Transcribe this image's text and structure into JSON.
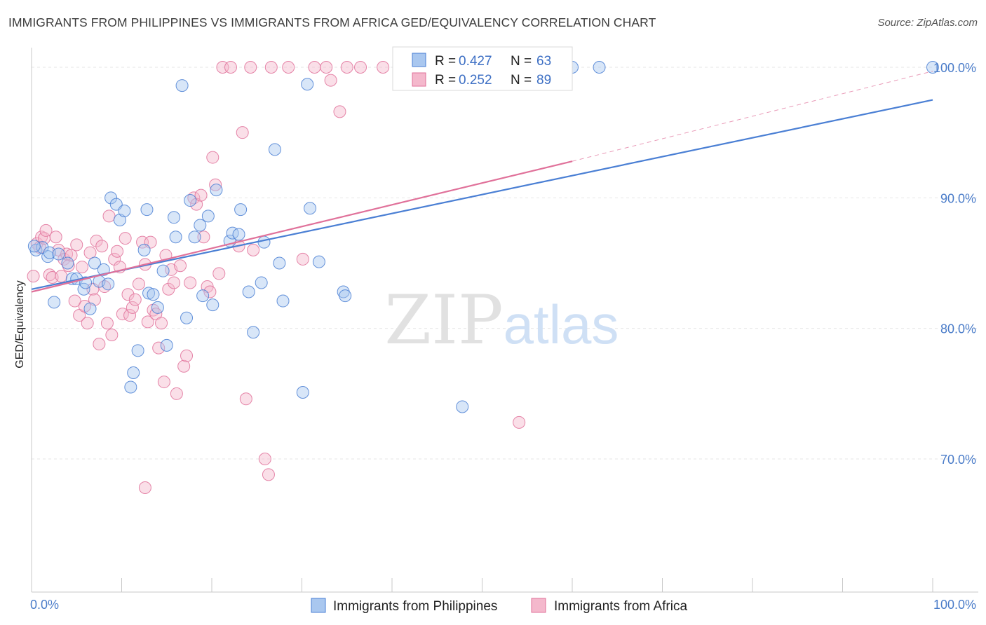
{
  "header": {
    "title": "IMMIGRANTS FROM PHILIPPINES VS IMMIGRANTS FROM AFRICA GED/EQUIVALENCY CORRELATION CHART",
    "source": "Source: ZipAtlas.com"
  },
  "watermark": {
    "zip": "ZIP",
    "atlas": "atlas"
  },
  "colors": {
    "blue": "#4a7fd4",
    "blue_fill": "#a9c7ef",
    "pink": "#e0719a",
    "pink_fill": "#f4b8cc",
    "tick_label": "#4a7cc9"
  },
  "legend": {
    "row1": {
      "r_label": "R = ",
      "r_value": "0.427",
      "n_label": "N = ",
      "n_value": "63"
    },
    "row2": {
      "r_label": "R = ",
      "r_value": "0.252",
      "n_label": "N = ",
      "n_value": "89"
    }
  },
  "chart_data": {
    "type": "scatter",
    "title": "IMMIGRANTS FROM PHILIPPINES VS IMMIGRANTS FROM AFRICA GED/EQUIVALENCY CORRELATION CHART",
    "xlabel": "",
    "ylabel": "GED/Equivalency",
    "xlim": [
      0,
      100
    ],
    "ylim": [
      60,
      101.5
    ],
    "x_tick_labels": [
      "0.0%",
      "100.0%"
    ],
    "y_ticks": [
      70,
      80,
      90,
      100
    ],
    "y_tick_labels": [
      "70.0%",
      "80.0%",
      "90.0%",
      "100.0%"
    ],
    "grid": true,
    "legend_position": "top-center",
    "series": [
      {
        "name": "Immigrants from Philippines",
        "color": "#4a7fd4",
        "trend": {
          "x": [
            0,
            100
          ],
          "y": [
            83.0,
            97.5
          ]
        },
        "points": [
          [
            0.5,
            86.0
          ],
          [
            1.2,
            86.2
          ],
          [
            1.8,
            85.5
          ],
          [
            2.0,
            85.8
          ],
          [
            2.5,
            82.0
          ],
          [
            3.0,
            85.7
          ],
          [
            4.0,
            85.0
          ],
          [
            4.5,
            83.8
          ],
          [
            5.0,
            83.8
          ],
          [
            5.8,
            83.0
          ],
          [
            6.0,
            83.5
          ],
          [
            6.5,
            81.5
          ],
          [
            7.0,
            85.0
          ],
          [
            7.5,
            83.6
          ],
          [
            8.0,
            84.5
          ],
          [
            8.5,
            83.4
          ],
          [
            8.8,
            90.0
          ],
          [
            9.4,
            89.5
          ],
          [
            9.8,
            88.3
          ],
          [
            10.3,
            89.0
          ],
          [
            11.0,
            75.5
          ],
          [
            11.3,
            76.6
          ],
          [
            11.8,
            78.3
          ],
          [
            12.5,
            86.0
          ],
          [
            12.8,
            89.1
          ],
          [
            13.0,
            82.7
          ],
          [
            13.5,
            82.6
          ],
          [
            14.0,
            81.6
          ],
          [
            14.6,
            84.4
          ],
          [
            15.0,
            78.7
          ],
          [
            15.8,
            88.5
          ],
          [
            16.0,
            87.0
          ],
          [
            16.7,
            98.6
          ],
          [
            17.2,
            80.8
          ],
          [
            17.6,
            89.8
          ],
          [
            18.1,
            87.0
          ],
          [
            18.7,
            87.9
          ],
          [
            19.0,
            82.5
          ],
          [
            19.6,
            88.6
          ],
          [
            20.1,
            81.8
          ],
          [
            20.5,
            90.6
          ],
          [
            22.0,
            86.7
          ],
          [
            22.3,
            87.3
          ],
          [
            23.0,
            87.2
          ],
          [
            23.2,
            89.1
          ],
          [
            24.1,
            82.8
          ],
          [
            24.6,
            79.7
          ],
          [
            25.5,
            83.5
          ],
          [
            25.8,
            86.6
          ],
          [
            27.0,
            93.7
          ],
          [
            27.5,
            85.0
          ],
          [
            27.9,
            82.1
          ],
          [
            30.1,
            75.1
          ],
          [
            30.6,
            98.7
          ],
          [
            30.9,
            89.2
          ],
          [
            31.9,
            85.1
          ],
          [
            34.6,
            82.8
          ],
          [
            34.8,
            82.5
          ],
          [
            47.8,
            74.0
          ],
          [
            60.0,
            100.0
          ],
          [
            63.0,
            100.0
          ],
          [
            100.0,
            100.0
          ],
          [
            0.3,
            86.3
          ]
        ]
      },
      {
        "name": "Immigrants from Africa",
        "color": "#e0719a",
        "trend": {
          "x": [
            0,
            60
          ],
          "y": [
            82.8,
            92.8
          ]
        },
        "trend_extension": {
          "x": [
            60,
            100
          ],
          "y": [
            92.8,
            99.7
          ]
        },
        "points": [
          [
            0.2,
            84.0
          ],
          [
            0.6,
            86.5
          ],
          [
            0.9,
            86.2
          ],
          [
            1.1,
            87.0
          ],
          [
            1.4,
            86.9
          ],
          [
            1.6,
            87.5
          ],
          [
            2.0,
            84.1
          ],
          [
            2.3,
            83.9
          ],
          [
            2.7,
            87.0
          ],
          [
            3.0,
            86.0
          ],
          [
            3.3,
            84.0
          ],
          [
            3.6,
            85.3
          ],
          [
            3.9,
            85.7
          ],
          [
            4.1,
            84.8
          ],
          [
            4.4,
            85.6
          ],
          [
            4.8,
            82.1
          ],
          [
            5.0,
            86.4
          ],
          [
            5.3,
            81.0
          ],
          [
            5.6,
            84.7
          ],
          [
            5.9,
            81.7
          ],
          [
            6.2,
            80.4
          ],
          [
            6.5,
            85.8
          ],
          [
            6.8,
            83.0
          ],
          [
            7.0,
            82.2
          ],
          [
            7.2,
            86.7
          ],
          [
            7.5,
            78.8
          ],
          [
            7.8,
            86.3
          ],
          [
            8.1,
            83.2
          ],
          [
            8.4,
            80.4
          ],
          [
            8.6,
            88.6
          ],
          [
            8.9,
            79.5
          ],
          [
            9.2,
            85.3
          ],
          [
            9.5,
            85.9
          ],
          [
            9.8,
            84.7
          ],
          [
            10.1,
            81.1
          ],
          [
            10.4,
            86.9
          ],
          [
            10.7,
            82.6
          ],
          [
            10.9,
            81.0
          ],
          [
            11.2,
            81.6
          ],
          [
            11.5,
            82.2
          ],
          [
            11.9,
            83.4
          ],
          [
            12.3,
            86.6
          ],
          [
            12.6,
            84.9
          ],
          [
            12.9,
            80.5
          ],
          [
            13.2,
            86.6
          ],
          [
            13.5,
            81.4
          ],
          [
            13.8,
            81.1
          ],
          [
            14.1,
            78.5
          ],
          [
            14.4,
            80.4
          ],
          [
            14.7,
            75.9
          ],
          [
            14.9,
            85.6
          ],
          [
            15.2,
            83.0
          ],
          [
            15.5,
            84.5
          ],
          [
            15.8,
            83.5
          ],
          [
            16.1,
            75.0
          ],
          [
            16.5,
            84.8
          ],
          [
            16.9,
            77.1
          ],
          [
            17.2,
            77.9
          ],
          [
            17.6,
            83.5
          ],
          [
            18.0,
            90.0
          ],
          [
            18.3,
            89.5
          ],
          [
            18.8,
            90.2
          ],
          [
            19.1,
            87.0
          ],
          [
            19.5,
            83.2
          ],
          [
            19.8,
            82.8
          ],
          [
            20.1,
            93.1
          ],
          [
            20.4,
            91.0
          ],
          [
            20.8,
            84.2
          ],
          [
            21.2,
            100.0
          ],
          [
            22.1,
            100.0
          ],
          [
            23.0,
            86.3
          ],
          [
            23.4,
            95.0
          ],
          [
            23.8,
            74.6
          ],
          [
            24.3,
            100.0
          ],
          [
            24.6,
            86.0
          ],
          [
            25.9,
            70.0
          ],
          [
            26.3,
            68.8
          ],
          [
            26.6,
            100.0
          ],
          [
            28.5,
            100.0
          ],
          [
            30.1,
            85.3
          ],
          [
            31.4,
            100.0
          ],
          [
            32.7,
            100.0
          ],
          [
            33.2,
            99.0
          ],
          [
            34.2,
            96.6
          ],
          [
            35.0,
            100.0
          ],
          [
            36.5,
            100.0
          ],
          [
            39.0,
            100.0
          ],
          [
            54.1,
            72.8
          ],
          [
            12.6,
            67.8
          ]
        ]
      }
    ]
  }
}
